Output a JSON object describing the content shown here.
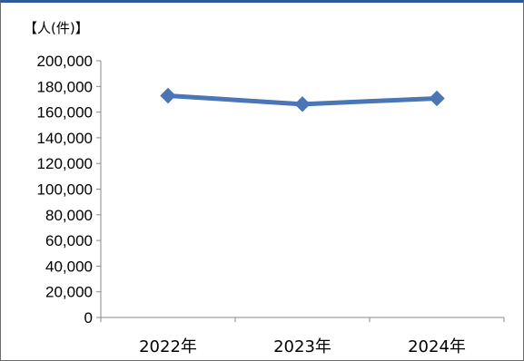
{
  "chart_data": {
    "type": "line",
    "unit_label": "【人(件)】",
    "categories": [
      "2022年",
      "2023年",
      "2024年"
    ],
    "series": [
      {
        "values": [
          172800,
          166200,
          170700
        ],
        "color": "#4a76b6"
      }
    ],
    "ylim": [
      0,
      200000
    ],
    "y_ticks": [
      "0",
      "20,000",
      "40,000",
      "60,000",
      "80,000",
      "100,000",
      "120,000",
      "140,000",
      "160,000",
      "180,000",
      "200,000"
    ],
    "grid": false,
    "legend": "none"
  }
}
